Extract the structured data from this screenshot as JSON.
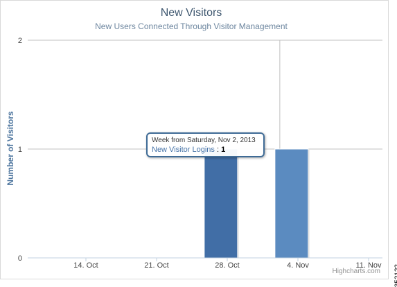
{
  "chart_data": {
    "type": "bar",
    "title": "New Visitors",
    "subtitle": "New Users Connected Through Visitor Management",
    "ylabel": "Number of Visitors",
    "xlabel": "",
    "categories": [
      "14. Oct",
      "21. Oct",
      "28. Oct",
      "4. Nov",
      "11. Nov"
    ],
    "ylim": [
      0,
      2
    ],
    "yticks": [
      0,
      1,
      2
    ],
    "grid": true,
    "series": [
      {
        "name": "New Visitor Logins",
        "color": "#4572a7",
        "points": [
          {
            "x": "2013-10-26",
            "y": 1
          },
          {
            "x": "2013-11-02",
            "y": 1
          }
        ]
      }
    ]
  },
  "tooltip": {
    "header": "Week from Saturday, Nov 2, 2013",
    "series_label": "New Visitor Logins",
    "separator": ":",
    "value": "1"
  },
  "credits": "Highcharts.com",
  "figure_id": "352122"
}
